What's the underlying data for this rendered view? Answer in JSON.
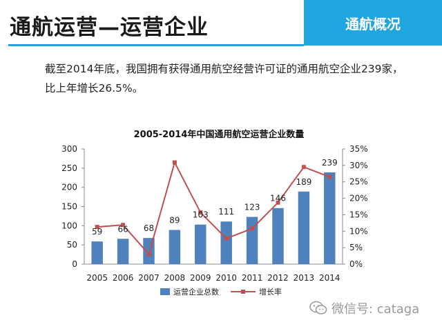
{
  "header": {
    "title": "通航运营—运营企业",
    "section_tag": "通航概况"
  },
  "summary": {
    "line1": "截至2014年底，我国拥有获得通用航空经营许可证的通用航空企业239家，",
    "line2": "比上年增长26.5%。"
  },
  "watermark": {
    "text": "微信号: cataga",
    "icon": "wechat-icon"
  },
  "colors": {
    "accent": "#1fa6df",
    "bar": "#4f81bd",
    "line": "#c0504d"
  },
  "chart_data": {
    "type": "bar",
    "title": "2005-2014年中国通用航空运营企业数量",
    "categories": [
      "2005",
      "2006",
      "2007",
      "2008",
      "2009",
      "2010",
      "2011",
      "2012",
      "2013",
      "2014"
    ],
    "series": [
      {
        "name": "运营企业总数",
        "type": "bar",
        "axis": "left",
        "values": [
          59,
          66,
          68,
          89,
          103,
          111,
          123,
          146,
          189,
          239
        ],
        "data_labels": [
          "59",
          "66",
          "68",
          "89",
          "103",
          "111",
          "123",
          "146",
          "189",
          "239"
        ]
      },
      {
        "name": "增长率",
        "type": "line",
        "axis": "right",
        "values": [
          11.3,
          11.9,
          3.0,
          30.9,
          15.7,
          7.8,
          10.8,
          18.7,
          29.5,
          26.5
        ]
      }
    ],
    "ylim_left": [
      0,
      300
    ],
    "yticks_left": [
      "0",
      "50",
      "100",
      "150",
      "200",
      "250",
      "300"
    ],
    "ylim_right": [
      0,
      35
    ],
    "yticks_right": [
      "0%",
      "5%",
      "10%",
      "15%",
      "20%",
      "25%",
      "30%",
      "35%"
    ],
    "grid": false,
    "legend_position": "bottom"
  }
}
